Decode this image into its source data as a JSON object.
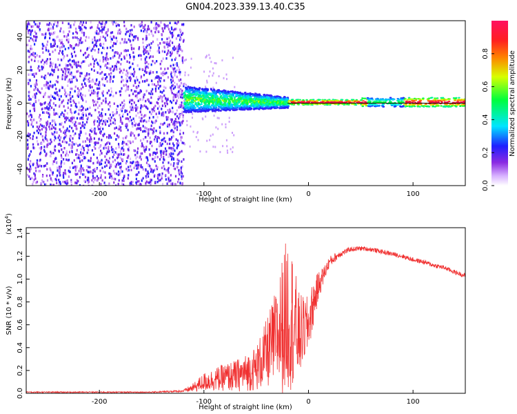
{
  "title": "GN04.2023.339.13.40.C35",
  "chart_data": [
    {
      "type": "heatmap",
      "xlabel": "Height of straight line (km)",
      "ylabel": "Frequency (Hz)",
      "xlim": [
        -270,
        150
      ],
      "ylim": [
        -50,
        50
      ],
      "xticks": [
        -200,
        -100,
        0,
        100
      ],
      "yticks": [
        -40,
        -20,
        0,
        20,
        40
      ],
      "colorbar": {
        "label": "Normalized spectral amplitude",
        "range": [
          0,
          1
        ],
        "ticks": [
          0.0,
          0.2,
          0.4,
          0.6,
          0.8
        ],
        "tick_labels": [
          "0.0",
          "0.2",
          "0.4",
          "0.6",
          "0.8"
        ]
      },
      "regions": [
        {
          "description_x": [
            -270,
            -120
          ],
          "freq": [
            -50,
            50
          ],
          "amplitude": [
            0.05,
            0.25
          ]
        },
        {
          "description_x": [
            -120,
            -20
          ],
          "freq_center": 3,
          "freq_halfwidth": 8,
          "amplitude": [
            0.2,
            0.6
          ]
        },
        {
          "description_x": [
            -20,
            150
          ],
          "freq_center": 1,
          "freq_halfwidth": 2,
          "amplitude": [
            0.7,
            1.0
          ]
        }
      ],
      "reference_line": {
        "x": [
          -20,
          150
        ],
        "y": 0
      }
    },
    {
      "type": "line",
      "xlabel": "Height of straight line (km)",
      "ylabel": "SNR (10 * v/v)",
      "y_multiplier": "(x10",
      "y_multiplier_exp": "4",
      "y_multiplier_close": ")",
      "xlim": [
        -270,
        150
      ],
      "ylim": [
        0.0,
        1.45
      ],
      "xticks": [
        -200,
        -100,
        0,
        100
      ],
      "yticks": [
        0.0,
        0.2,
        0.4,
        0.6,
        0.8,
        1.0,
        1.2,
        1.4
      ],
      "ytick_labels": [
        "0.0",
        "0.2",
        "0.4",
        "0.6",
        "0.8",
        "1.0",
        "1.2",
        "1.4"
      ],
      "series": [
        {
          "color": "#f03030",
          "x": [
            -270,
            -250,
            -200,
            -150,
            -120,
            -110,
            -100,
            -90,
            -80,
            -70,
            -60,
            -50,
            -40,
            -30,
            -25,
            -20,
            -15,
            -10,
            -5,
            0,
            5,
            10,
            15,
            20,
            30,
            40,
            50,
            60,
            70,
            80,
            90,
            100,
            110,
            120,
            130,
            140,
            150
          ],
          "y": [
            0.01,
            0.01,
            0.01,
            0.01,
            0.02,
            0.05,
            0.1,
            0.12,
            0.14,
            0.15,
            0.18,
            0.22,
            0.35,
            0.5,
            0.6,
            0.7,
            0.65,
            0.5,
            0.55,
            0.6,
            0.8,
            0.95,
            1.05,
            1.15,
            1.22,
            1.26,
            1.27,
            1.26,
            1.24,
            1.22,
            1.2,
            1.17,
            1.15,
            1.12,
            1.1,
            1.06,
            1.03
          ],
          "noise_amplitude": [
            0.005,
            0.005,
            0.005,
            0.005,
            0.01,
            0.04,
            0.08,
            0.1,
            0.12,
            0.14,
            0.16,
            0.2,
            0.3,
            0.45,
            0.6,
            0.7,
            0.6,
            0.4,
            0.3,
            0.25,
            0.2,
            0.12,
            0.07,
            0.05,
            0.03,
            0.02,
            0.02,
            0.02,
            0.02,
            0.02,
            0.02,
            0.02,
            0.02,
            0.02,
            0.02,
            0.02,
            0.02
          ]
        }
      ]
    }
  ],
  "colors": {
    "heat_low": "#e6ccff",
    "heat_mid": "#7a1fff",
    "line": "#f03030",
    "axis": "#000000"
  }
}
